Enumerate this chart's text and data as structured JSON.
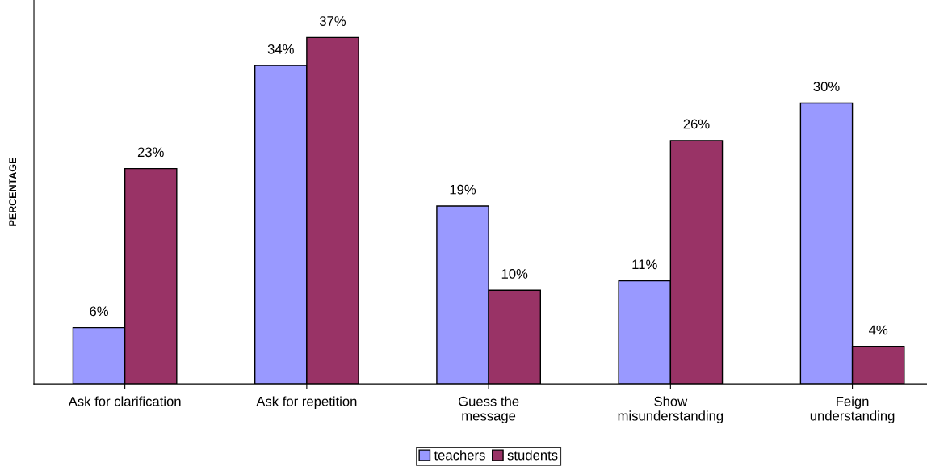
{
  "chart_data": {
    "type": "bar",
    "ylabel": "PERCENTAGE",
    "categories": [
      "Ask for clarification",
      "Ask for repetition",
      "Guess the\nmessage",
      "Show\nmisunderstanding",
      "Feign\nunderstanding"
    ],
    "series": [
      {
        "name": "teachers",
        "color": "#9999ff",
        "values": [
          6,
          34,
          19,
          11,
          30
        ],
        "value_labels": [
          "6%",
          "34%",
          "19%",
          "11%",
          "30%"
        ]
      },
      {
        "name": "students",
        "color": "#993366",
        "values": [
          23,
          37,
          10,
          26,
          4
        ],
        "value_labels": [
          "23%",
          "37%",
          "10%",
          "26%",
          "4%"
        ]
      }
    ],
    "ylim": [
      0,
      41
    ],
    "grid": false,
    "legend": "bottom"
  }
}
